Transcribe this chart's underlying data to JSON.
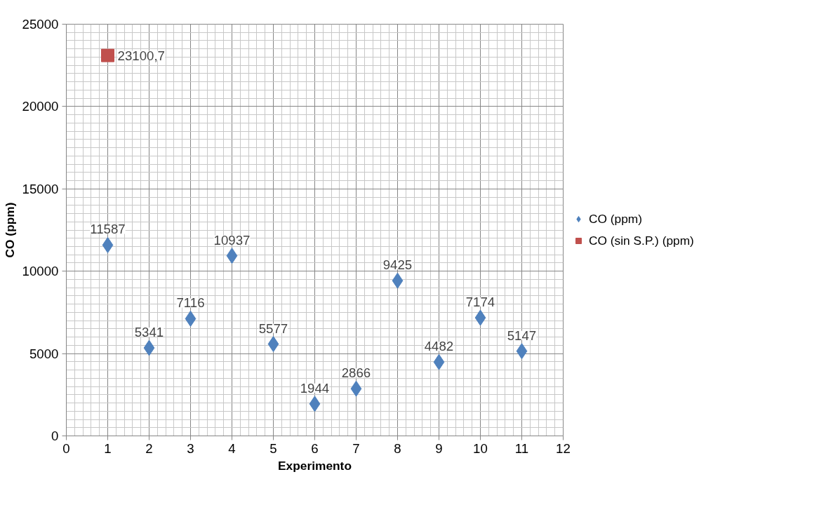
{
  "chart_data": {
    "type": "scatter",
    "xlabel": "Experimento",
    "ylabel": "CO (ppm)",
    "xlim": [
      0,
      12
    ],
    "xticks": [
      0,
      1,
      2,
      3,
      4,
      5,
      6,
      7,
      8,
      9,
      10,
      11,
      12
    ],
    "ylim": [
      0,
      25000
    ],
    "yticks": [
      0,
      5000,
      10000,
      15000,
      20000,
      25000
    ],
    "grid": true,
    "legend": "right",
    "series": [
      {
        "name": "CO (ppm)",
        "color": "#4f81bd",
        "marker": "diamond",
        "x": [
          1,
          2,
          3,
          4,
          5,
          6,
          7,
          8,
          9,
          10,
          11
        ],
        "values": [
          11587,
          5341,
          7116,
          10937,
          5577,
          1944,
          2866,
          9425,
          4482,
          7174,
          5147
        ],
        "value_labels": [
          "11587",
          "5341",
          "7116",
          "10937",
          "5577",
          "1944",
          "2866",
          "9425",
          "4482",
          "7174",
          "5147"
        ]
      },
      {
        "name": "CO (sin S.P.) (ppm)",
        "color": "#c0504d",
        "marker": "square",
        "x": [
          1
        ],
        "values": [
          23100.7
        ],
        "value_labels": [
          "23100,7"
        ]
      }
    ]
  }
}
